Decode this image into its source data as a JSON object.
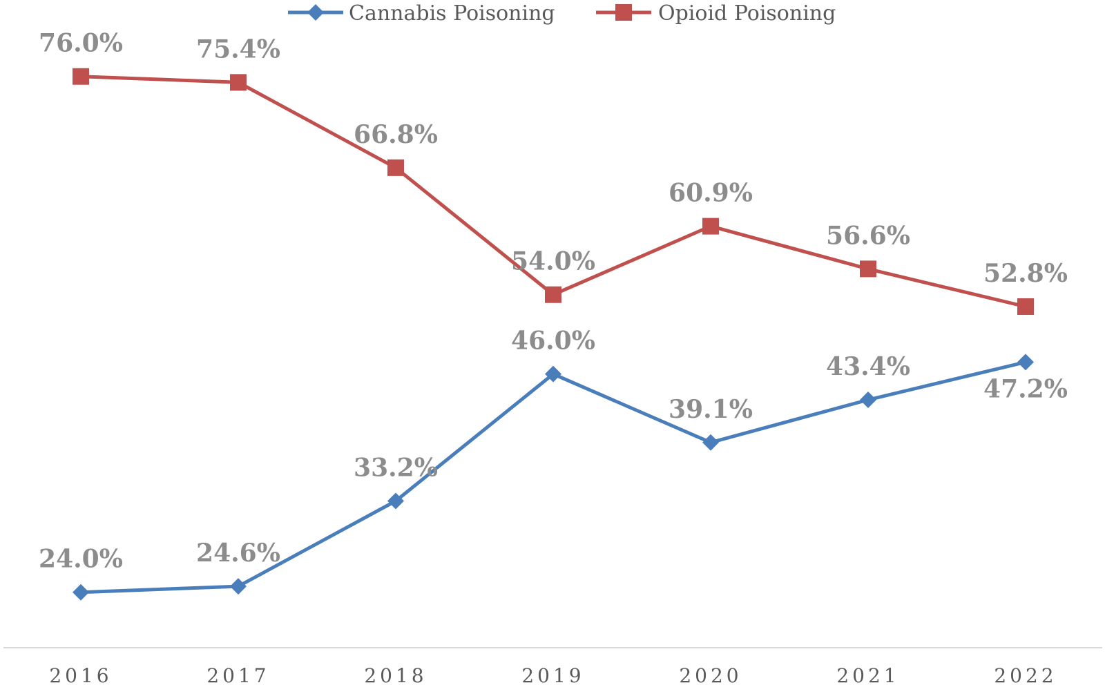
{
  "chart_data": {
    "type": "line",
    "title": "",
    "xlabel": "",
    "ylabel": "",
    "categories": [
      "2016",
      "2017",
      "2018",
      "2019",
      "2020",
      "2021",
      "2022"
    ],
    "ylim": [
      10,
      90
    ],
    "grid": false,
    "legend_position": "top",
    "series": [
      {
        "name": "Cannabis Poisoning",
        "color": "#4a7ebb",
        "marker": "diamond",
        "values": [
          24.0,
          24.6,
          33.2,
          46.0,
          39.1,
          43.4,
          47.2
        ],
        "labels": [
          "24.0%",
          "24.6%",
          "33.2%",
          "46.0%",
          "39.1%",
          "43.4%",
          "47.2%"
        ]
      },
      {
        "name": "Opioid Poisoning",
        "color": "#c0504d",
        "marker": "square",
        "values": [
          76.0,
          75.4,
          66.8,
          54.0,
          60.9,
          56.6,
          52.8
        ],
        "labels": [
          "76.0%",
          "75.4%",
          "66.8%",
          "54.0%",
          "60.9%",
          "56.6%",
          "52.8%"
        ]
      }
    ]
  }
}
